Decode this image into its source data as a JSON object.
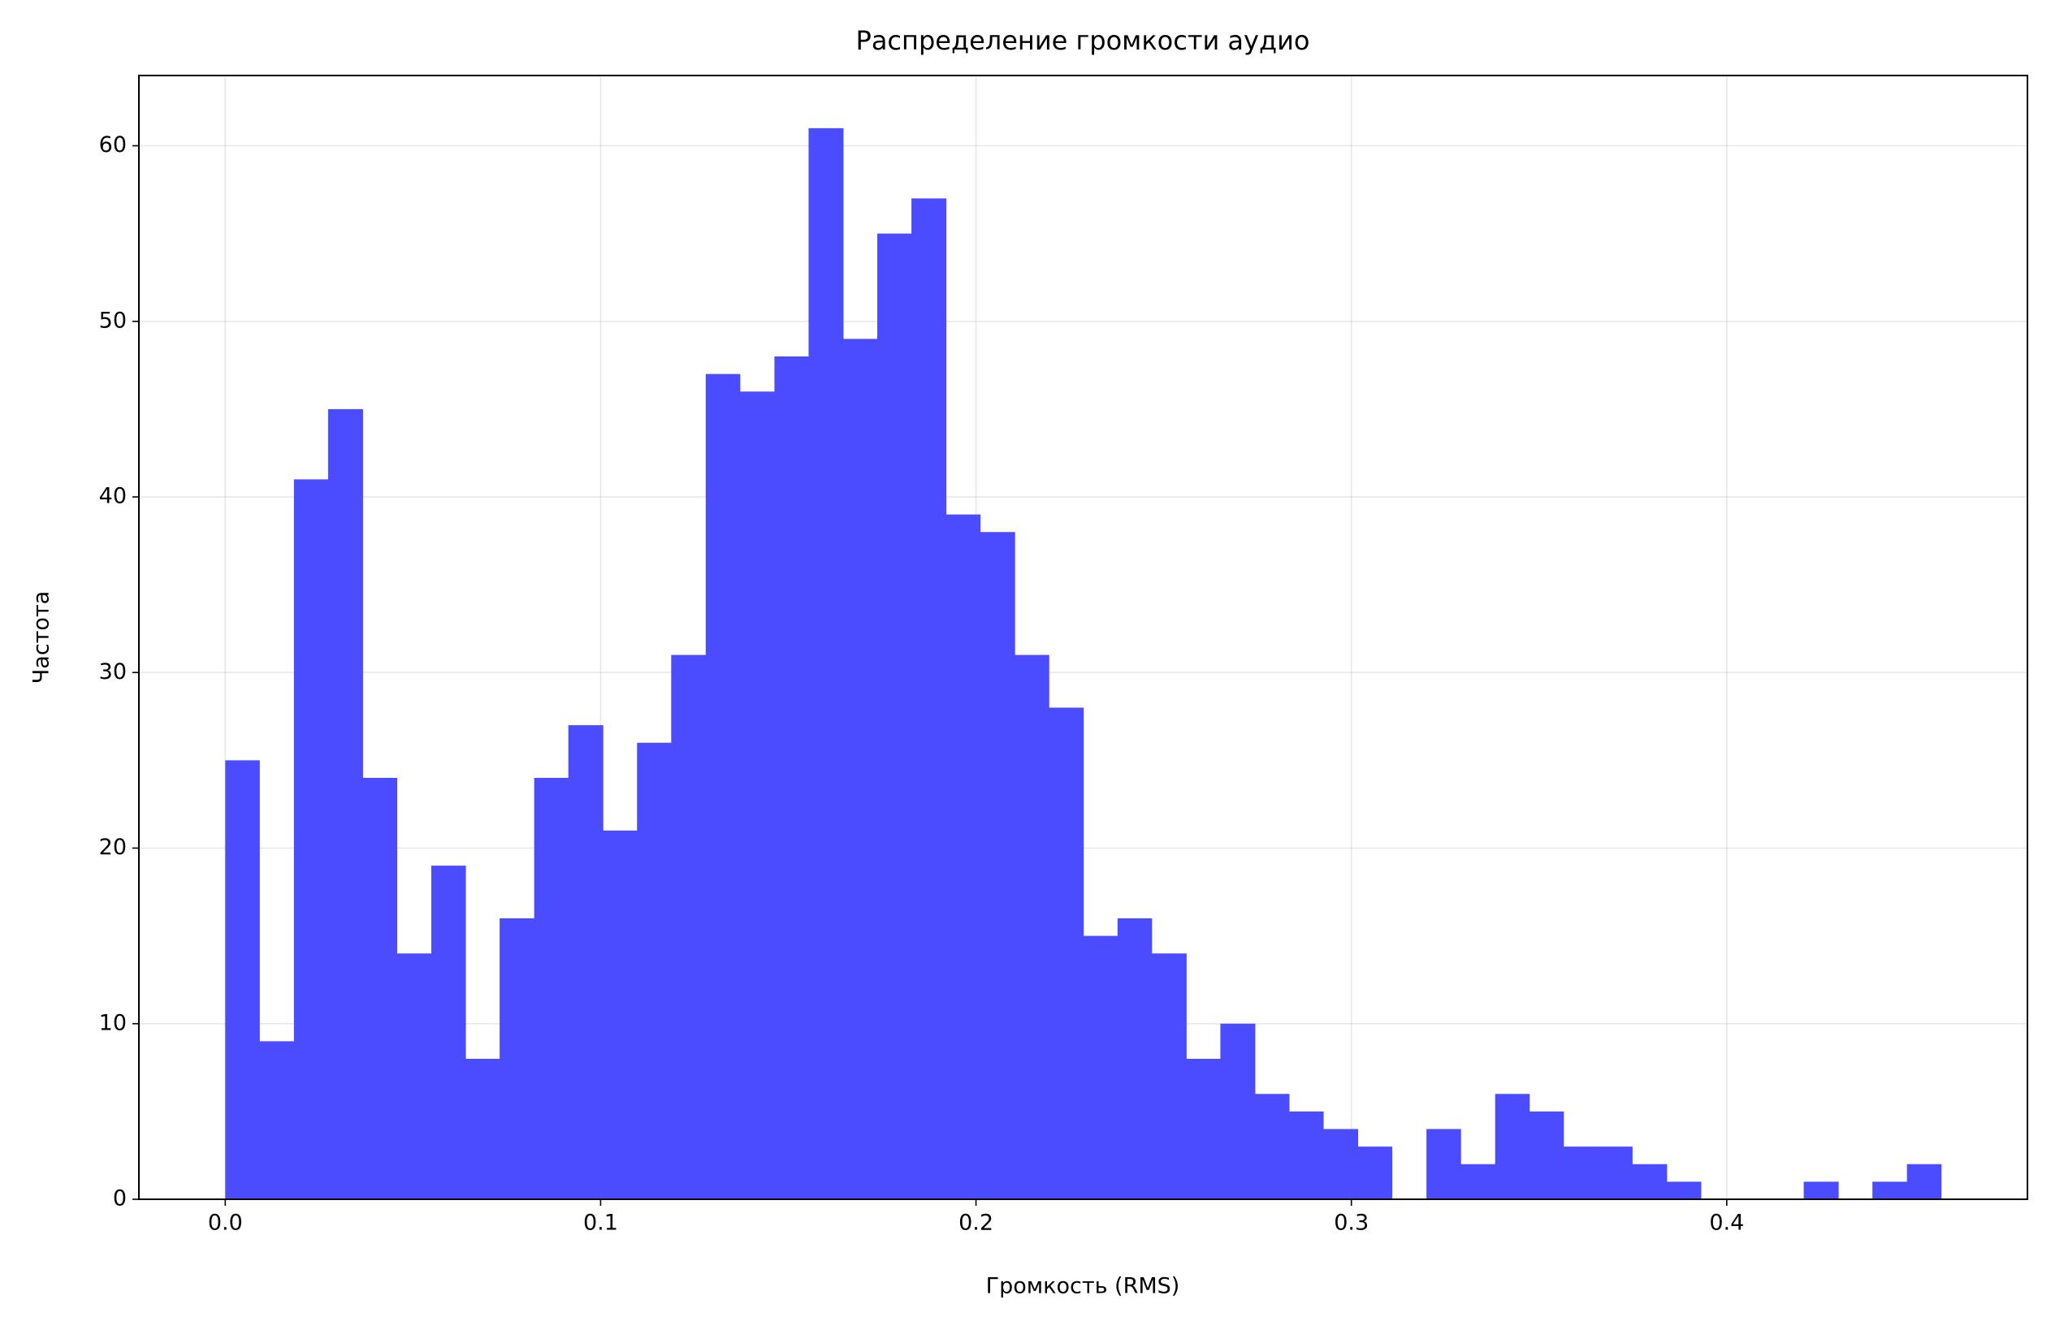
{
  "chart_data": {
    "type": "histogram",
    "title": "Распределение громкости аудио",
    "x_label": "Громкость (RMS)",
    "y_label": "Частота",
    "bins": [
      0,
      0.0091,
      0.0183,
      0.0274,
      0.0366,
      0.0457,
      0.0549,
      0.064,
      0.0731,
      0.0823,
      0.0914,
      0.1006,
      0.1097,
      0.1188,
      0.128,
      0.1371,
      0.1463,
      0.1554,
      0.1646,
      0.1737,
      0.1828,
      0.192,
      0.2011,
      0.2103,
      0.2194,
      0.2286,
      0.2377,
      0.2468,
      0.256,
      0.2651,
      0.2743,
      0.2834,
      0.2925,
      0.3017,
      0.3108,
      0.32,
      0.3291,
      0.3383,
      0.3474,
      0.3565,
      0.3657,
      0.3748,
      0.384,
      0.3931,
      0.4023,
      0.4114,
      0.4205,
      0.4297,
      0.4388,
      0.448,
      0.4571
    ],
    "counts": [
      25,
      9,
      41,
      45,
      24,
      14,
      19,
      8,
      16,
      24,
      27,
      21,
      26,
      31,
      47,
      46,
      48,
      61,
      49,
      55,
      57,
      39,
      38,
      31,
      28,
      15,
      16,
      14,
      8,
      10,
      6,
      5,
      4,
      3,
      0,
      4,
      2,
      6,
      5,
      3,
      3,
      2,
      1,
      0,
      0,
      0,
      1,
      0,
      1,
      2
    ],
    "color": "#4b4bff",
    "grid": true,
    "xlim": [
      -0.023,
      0.4801
    ],
    "xticks": [
      {
        "value": 0,
        "label": "0.0"
      },
      0.1,
      0.2,
      0.3,
      0.4
    ],
    "ylim": [
      0,
      64
    ],
    "yticks": [
      0,
      10,
      20,
      30,
      40,
      50,
      60
    ]
  }
}
